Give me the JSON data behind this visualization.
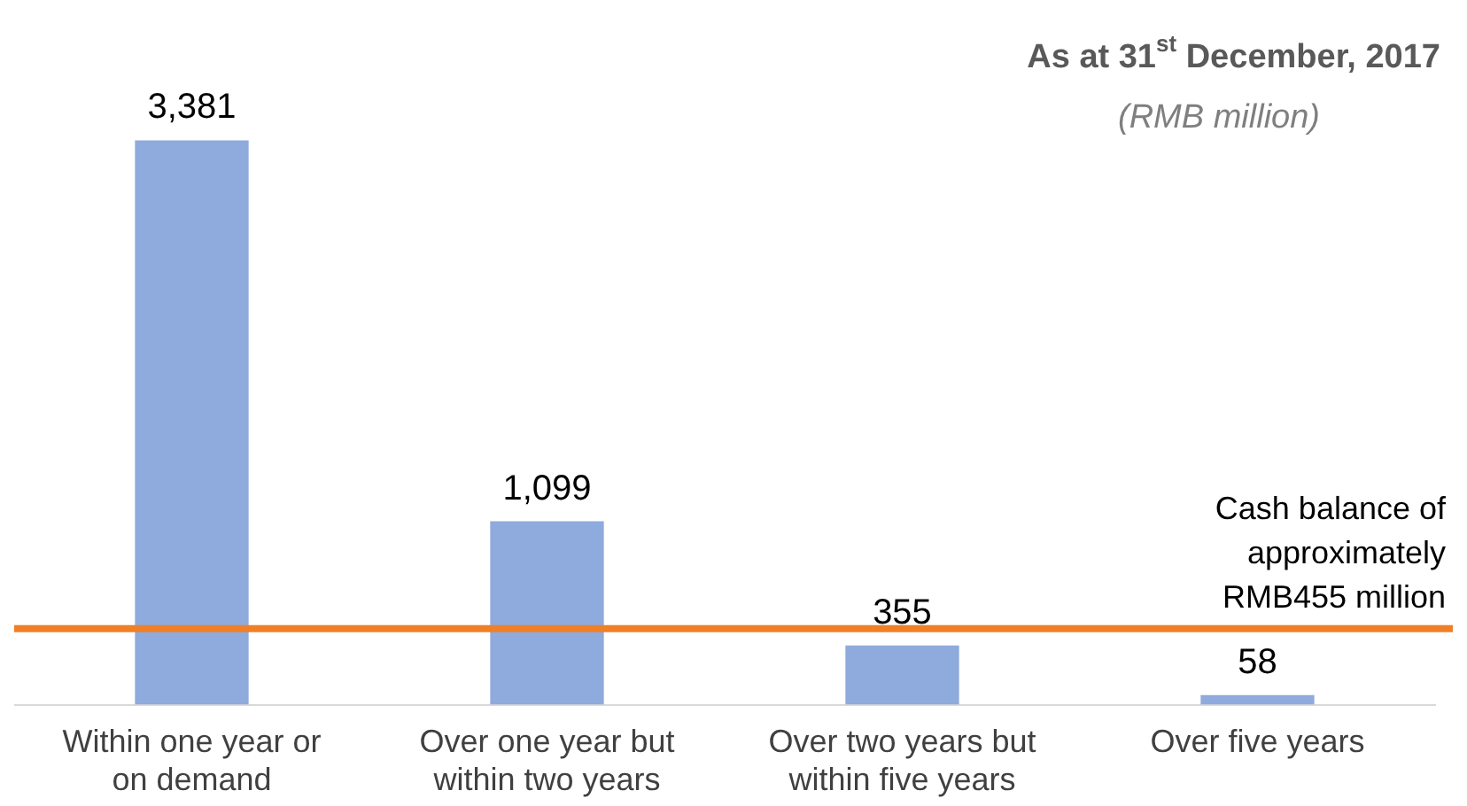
{
  "chart_data": {
    "type": "bar",
    "title": "As at 31$^{st}$ December, 2017",
    "subtitle": "(RMB million)",
    "categories": [
      "Within one year or on demand",
      "Over one year but within two years",
      "Over two years but within five years",
      "Over five years"
    ],
    "values": [
      3381,
      1099,
      355,
      58
    ],
    "value_labels": [
      "3,381",
      "1,099",
      "355",
      "58"
    ],
    "color": "#8faadc",
    "legend": false,
    "grid": false,
    "ref_lines": [
      {
        "axis": "y",
        "value": 455,
        "label": "Cash balance of approximately RMB455 million",
        "color": "#f07f26"
      }
    ]
  }
}
